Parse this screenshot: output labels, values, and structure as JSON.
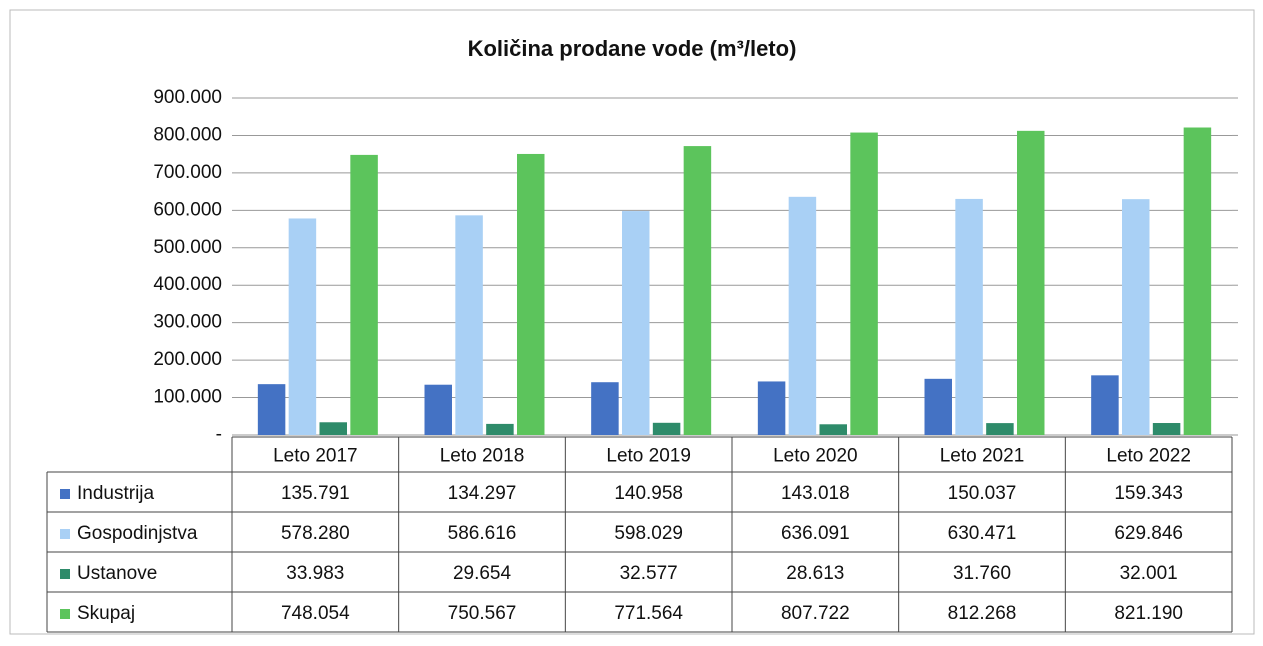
{
  "chart_data": {
    "type": "bar",
    "title": "Količina prodane vode (m³/leto)",
    "categories": [
      "Leto 2017",
      "Leto 2018",
      "Leto 2019",
      "Leto 2020",
      "Leto 2021",
      "Leto 2022"
    ],
    "series": [
      {
        "name": "Industrija",
        "color": "#4472c4",
        "values": [
          135791,
          134297,
          140958,
          143018,
          150037,
          159343
        ],
        "value_labels": [
          "135.791",
          "134.297",
          "140.958",
          "143.018",
          "150.037",
          "159.343"
        ]
      },
      {
        "name": "Gospodinjstva",
        "color": "#a9d0f5",
        "values": [
          578280,
          586616,
          598029,
          636091,
          630471,
          629846
        ],
        "value_labels": [
          "578.280",
          "586.616",
          "598.029",
          "636.091",
          "630.471",
          "629.846"
        ]
      },
      {
        "name": "Ustanove",
        "color": "#2e8b6a",
        "values": [
          33983,
          29654,
          32577,
          28613,
          31760,
          32001
        ],
        "value_labels": [
          "33.983",
          "29.654",
          "32.577",
          "28.613",
          "31.760",
          "32.001"
        ]
      },
      {
        "name": "Skupaj",
        "color": "#5cc45c",
        "values": [
          748054,
          750567,
          771564,
          807722,
          812268,
          821190
        ],
        "value_labels": [
          "748.054",
          "750.567",
          "771.564",
          "807.722",
          "812.268",
          "821.190"
        ]
      }
    ],
    "ylim": [
      0,
      900000
    ],
    "yticks": [
      {
        "value": 0,
        "label": "-"
      },
      {
        "value": 100000,
        "label": "100.000"
      },
      {
        "value": 200000,
        "label": "200.000"
      },
      {
        "value": 300000,
        "label": "300.000"
      },
      {
        "value": 400000,
        "label": "400.000"
      },
      {
        "value": 500000,
        "label": "500.000"
      },
      {
        "value": 600000,
        "label": "600.000"
      },
      {
        "value": 700000,
        "label": "700.000"
      },
      {
        "value": 800000,
        "label": "800.000"
      },
      {
        "value": 900000,
        "label": "900.000"
      }
    ],
    "grid": true
  }
}
